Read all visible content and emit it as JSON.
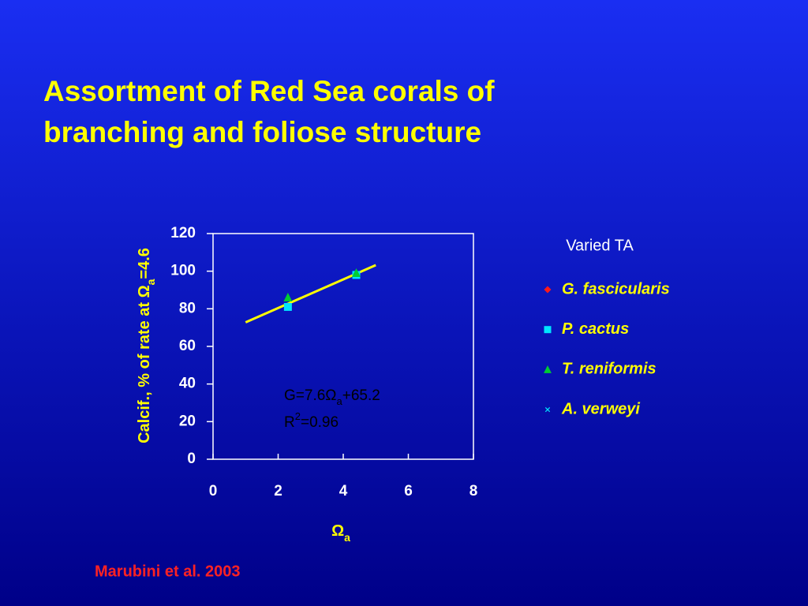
{
  "chart_data": {
    "type": "scatter",
    "title": "Assortment of Red Sea corals of branching and foliose structure",
    "xlabel": [
      "Ω",
      "a"
    ],
    "ylabel": [
      "Calcif., % of rate at Ω",
      "a",
      "=4.6"
    ],
    "xlim": [
      0,
      8
    ],
    "xticks": [
      0,
      2,
      4,
      6,
      8
    ],
    "ylim": [
      0,
      120
    ],
    "yticks": [
      0,
      20,
      40,
      60,
      80,
      100,
      120
    ],
    "legend_title": "Varied TA",
    "series": [
      {
        "name": "G. fascicularis",
        "color": "#ff1a1a",
        "marker": "diamond",
        "x": [],
        "values": []
      },
      {
        "name": "P. cactus",
        "color": "#00e5ff",
        "marker": "square",
        "x": [
          2.3,
          4.4
        ],
        "values": [
          81,
          98
        ]
      },
      {
        "name": "T. reniformis",
        "color": "#00cc33",
        "marker": "triangle",
        "x": [
          2.3,
          4.4
        ],
        "values": [
          86,
          99
        ]
      },
      {
        "name": "A. verweyi",
        "color": "#00e5ff",
        "marker": "x",
        "x": [],
        "values": []
      }
    ],
    "fit": {
      "color": "#ffff00",
      "x": [
        1,
        5
      ],
      "values": [
        72.8,
        103.2
      ]
    },
    "annotation": [
      [
        "G=7.6Ω",
        "a",
        "+65.2"
      ],
      [
        "R",
        "2",
        "=0.96"
      ]
    ],
    "source": "Marubini et al. 2003"
  }
}
